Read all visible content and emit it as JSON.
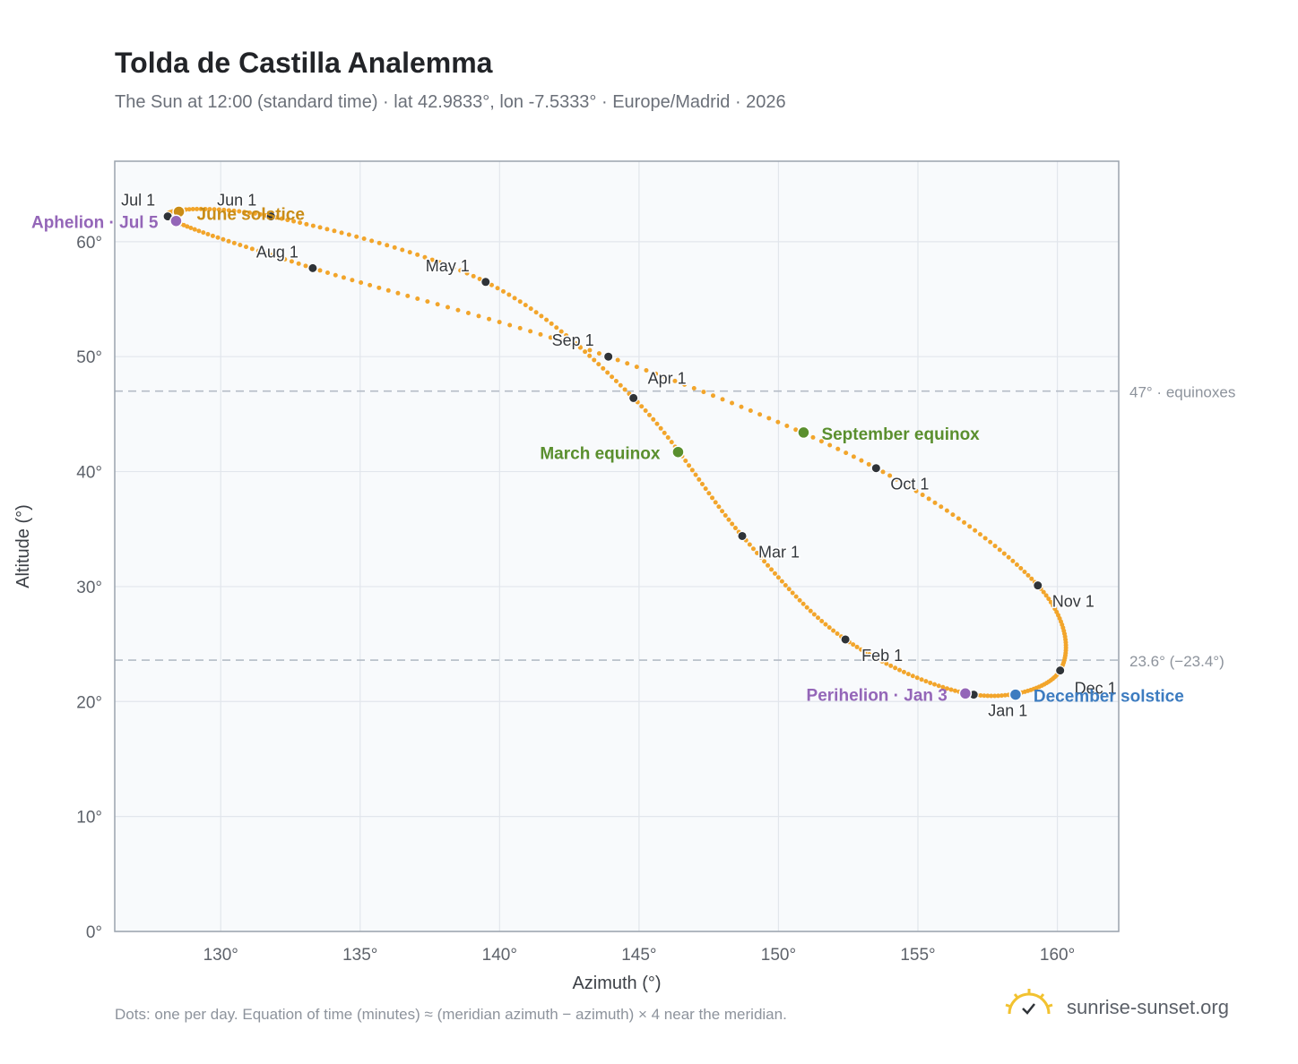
{
  "title": "Tolda de Castilla Analemma",
  "subtitle": "The Sun at 12:00 (standard time) · lat 42.9833°, lon -7.5333° · Europe/Madrid · 2026",
  "footnote": "Dots: one per day. Equation of time (minutes) ≈ (meridian azimuth − azimuth) × 4 near the meridian.",
  "brand": {
    "name": "sunrise-sunset.org",
    "icon": "sun-logo-icon"
  },
  "colors": {
    "curve": "#f2a52b",
    "month_marker": "#2f3338",
    "equinox": "#5a8f2e",
    "june_solstice": "#c98c16",
    "december_solstice": "#3d7cc0",
    "apsis": "#9466b8",
    "reference_line": "#b4bcc6",
    "plot_background": "#f8fafc",
    "grid": "#e2e6ec",
    "axis": "#9aa3ad"
  },
  "chart_data": {
    "type": "scatter",
    "title": "Tolda de Castilla Analemma",
    "xlabel": "Azimuth (°)",
    "ylabel": "Altitude (°)",
    "xlim": [
      126.2,
      162.2
    ],
    "ylim": [
      0,
      67
    ],
    "xticks": [
      130,
      135,
      140,
      145,
      150,
      155,
      160
    ],
    "yticks": [
      0,
      10,
      20,
      30,
      40,
      50,
      60
    ],
    "xtick_labels": [
      "130°",
      "135°",
      "140°",
      "145°",
      "150°",
      "155°",
      "160°"
    ],
    "ytick_labels": [
      "0°",
      "10°",
      "20°",
      "30°",
      "40°",
      "50°",
      "60°"
    ],
    "grid": true,
    "series": [
      {
        "points_per": "day",
        "month_starts": [
          {
            "label": "Jan 1",
            "az": 157.0,
            "alt": 20.6
          },
          {
            "label": "Feb 1",
            "az": 152.4,
            "alt": 25.4
          },
          {
            "label": "Mar 1",
            "az": 148.7,
            "alt": 34.4
          },
          {
            "label": "Apr 1",
            "az": 144.8,
            "alt": 46.4
          },
          {
            "label": "May 1",
            "az": 139.5,
            "alt": 56.5
          },
          {
            "label": "Jun 1",
            "az": 131.8,
            "alt": 62.2
          },
          {
            "label": "Jul 1",
            "az": 128.1,
            "alt": 62.2
          },
          {
            "label": "Aug 1",
            "az": 133.3,
            "alt": 57.7
          },
          {
            "label": "Sep 1",
            "az": 143.9,
            "alt": 50.0
          },
          {
            "label": "Oct 1",
            "az": 153.5,
            "alt": 40.3
          },
          {
            "label": "Nov 1",
            "az": 159.3,
            "alt": 30.1
          },
          {
            "label": "Dec 1",
            "az": 160.1,
            "alt": 22.7
          }
        ]
      }
    ],
    "events": [
      {
        "label": "March equinox",
        "az": 146.4,
        "alt": 41.7,
        "kind": "equinox"
      },
      {
        "label": "June solstice",
        "az": 128.5,
        "alt": 62.6,
        "kind": "june_solstice"
      },
      {
        "label": "September equinox",
        "az": 150.9,
        "alt": 43.4,
        "kind": "equinox"
      },
      {
        "label": "December solstice",
        "az": 158.5,
        "alt": 20.6,
        "kind": "december_solstice"
      },
      {
        "label": "Perihelion · Jan 3",
        "az": 156.7,
        "alt": 20.7,
        "kind": "apsis"
      },
      {
        "label": "Aphelion · Jul 5",
        "az": 128.4,
        "alt": 61.8,
        "kind": "apsis"
      }
    ],
    "reference_lines": [
      {
        "alt": 47.0,
        "label": "47° · equinoxes"
      },
      {
        "alt": 23.6,
        "label": "23.6° (−23.4°)"
      }
    ]
  }
}
